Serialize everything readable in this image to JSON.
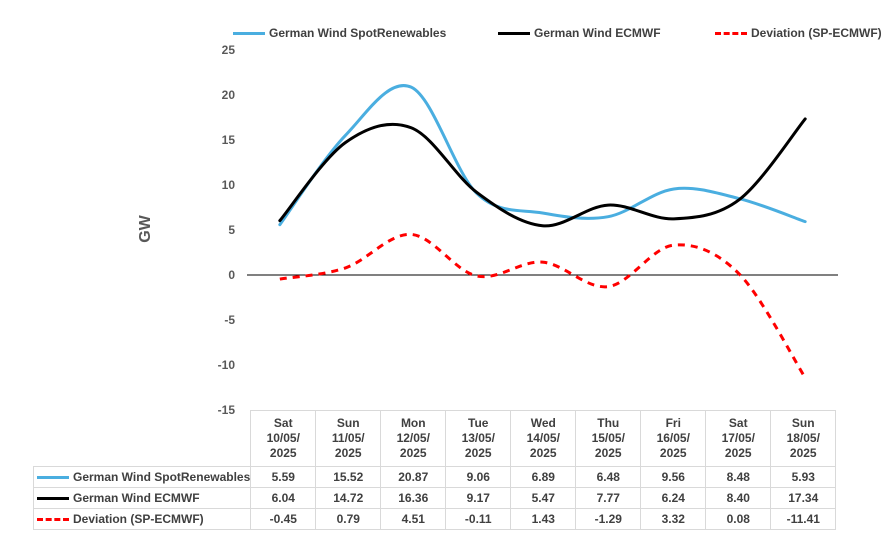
{
  "chart_data": {
    "type": "line",
    "title": "",
    "ylabel": "GW",
    "ylim": [
      -15,
      25
    ],
    "yticks": [
      25,
      20,
      15,
      10,
      5,
      0,
      -5,
      -10,
      -15
    ],
    "categories": [
      [
        "Sat",
        "10/05/",
        "2025"
      ],
      [
        "Sun",
        "11/05/",
        "2025"
      ],
      [
        "Mon",
        "12/05/",
        "2025"
      ],
      [
        "Tue",
        "13/05/",
        "2025"
      ],
      [
        "Wed",
        "14/05/",
        "2025"
      ],
      [
        "Thu",
        "15/05/",
        "2025"
      ],
      [
        "Fri",
        "16/05/",
        "2025"
      ],
      [
        "Sat",
        "17/05/",
        "2025"
      ],
      [
        "Sun",
        "18/05/",
        "2025"
      ]
    ],
    "series": [
      {
        "name": "German Wind SpotRenewables",
        "color": "#4aaee0",
        "dash": "solid",
        "values": [
          5.59,
          15.52,
          20.87,
          9.06,
          6.89,
          6.48,
          9.56,
          8.48,
          5.93
        ],
        "labels": [
          "5.59",
          "15.52",
          "20.87",
          "9.06",
          "6.89",
          "6.48",
          "9.56",
          "8.48",
          "5.93"
        ]
      },
      {
        "name": "German Wind ECMWF",
        "color": "#000000",
        "dash": "solid",
        "values": [
          6.04,
          14.72,
          16.36,
          9.17,
          5.47,
          7.77,
          6.24,
          8.4,
          17.34
        ],
        "labels": [
          "6.04",
          "14.72",
          "16.36",
          "9.17",
          "5.47",
          "7.77",
          "6.24",
          "8.40",
          "17.34"
        ]
      },
      {
        "name": "Deviation (SP-ECMWF)",
        "color": "#ff0000",
        "dash": "dashed",
        "values": [
          -0.45,
          0.79,
          4.51,
          -0.11,
          1.43,
          -1.29,
          3.32,
          0.08,
          -11.41
        ],
        "labels": [
          "-0.45",
          "0.79",
          "4.51",
          "-0.11",
          "1.43",
          "-1.29",
          "3.32",
          "0.08",
          "-11.41"
        ]
      }
    ],
    "legend": "top",
    "data_table": true
  }
}
